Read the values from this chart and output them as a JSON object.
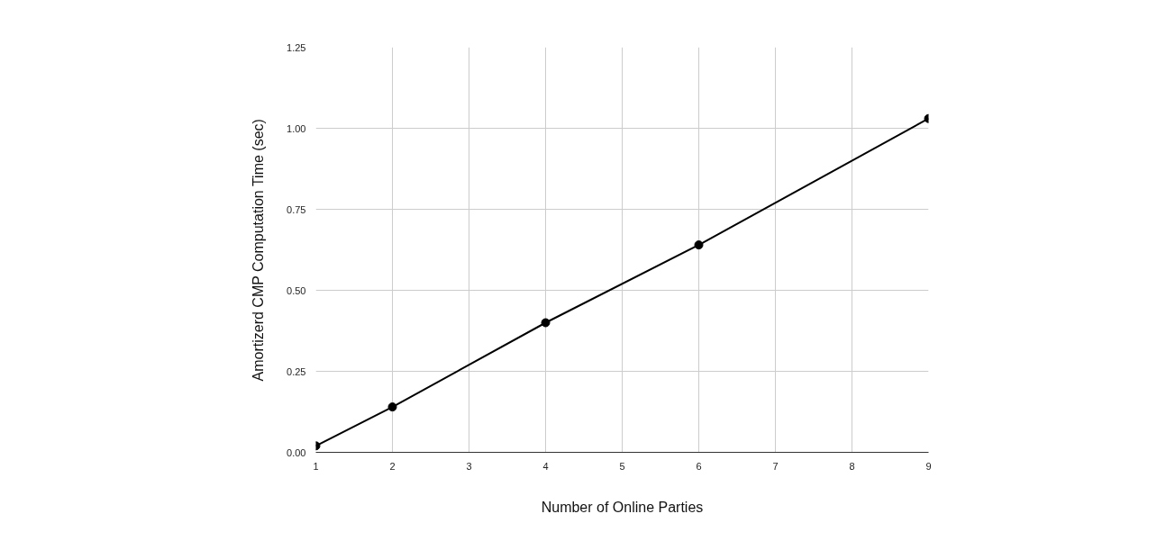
{
  "chart_data": {
    "type": "line",
    "xlabel": "Number of Online Parties",
    "ylabel": "Amortizerd CMP Computation Time (sec)",
    "x": [
      1,
      2,
      4,
      6,
      9
    ],
    "series": [
      {
        "color": "#000000",
        "values": [
          0.02,
          0.14,
          0.4,
          0.64,
          1.03
        ]
      }
    ],
    "xlim": [
      1,
      9
    ],
    "xticks": [
      1,
      2,
      3,
      4,
      5,
      6,
      7,
      8,
      9
    ],
    "ylim": [
      0,
      1.25
    ],
    "yticks": [
      {
        "value": 0,
        "label": "0.00"
      },
      {
        "value": 0.25,
        "label": "0.25"
      },
      {
        "value": 0.5,
        "label": "0.50"
      },
      {
        "value": 0.75,
        "label": "0.75"
      },
      {
        "value": 1,
        "label": "1.00"
      },
      {
        "value": 1.25,
        "label": "1.25"
      }
    ],
    "grid": true,
    "marker": "circle",
    "line_style": "solid"
  }
}
